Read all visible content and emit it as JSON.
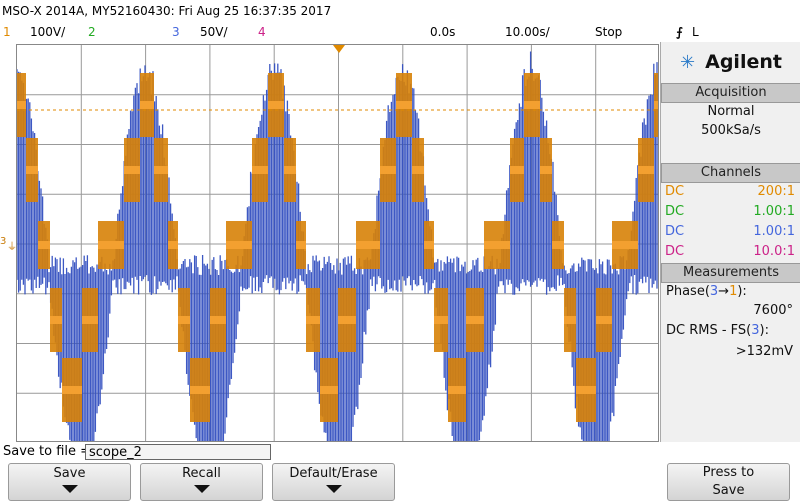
{
  "title": "MSO-X 2014A, MY52160430: Fri Aug 25 16:37:35 2017",
  "status": {
    "ch1_num": "1",
    "ch1_scale": "100V/",
    "ch2_num": "2",
    "ch3_num": "3",
    "ch3_scale": "50V/",
    "ch4_num": "4",
    "time_delay": "0.0s",
    "time_scale": "10.00s/",
    "run_state": "Stop",
    "trigger_symbol": "⨍",
    "trigger_source": "L"
  },
  "brand": {
    "name": "Agilent",
    "icon": "spark-icon"
  },
  "acquisition": {
    "header": "Acquisition",
    "mode": "Normal",
    "rate": "500kSa/s"
  },
  "channels": {
    "header": "Channels",
    "rows": [
      {
        "coupling": "DC",
        "probe": "200:1",
        "color": "#e08a00"
      },
      {
        "coupling": "DC",
        "probe": "1.00:1",
        "color": "#22aa22"
      },
      {
        "coupling": "DC",
        "probe": "1.00:1",
        "color": "#4466dd"
      },
      {
        "coupling": "DC",
        "probe": "10.0:1",
        "color": "#cc2288"
      }
    ]
  },
  "measurements": {
    "header": "Measurements",
    "m1_label_pre": "Phase(",
    "m1_a": "3",
    "m1_arrow": "→",
    "m1_b": "1",
    "m1_label_post": "):",
    "m1_value": "7600°",
    "m2_label_pre": "DC RMS - FS(",
    "m2_a": "3",
    "m2_label_post": "):",
    "m2_value": ">132mV"
  },
  "save": {
    "label": "Save to file =",
    "filename": "scope_2"
  },
  "softkeys": {
    "save": "Save",
    "recall": "Recall",
    "default": "Default/Erase",
    "press1": "Press to",
    "press2": "Save"
  },
  "colors": {
    "ch1": "#e08a00",
    "ch3": "#3350c0",
    "ch2": "#22aa22",
    "ch4": "#cc2288"
  }
}
